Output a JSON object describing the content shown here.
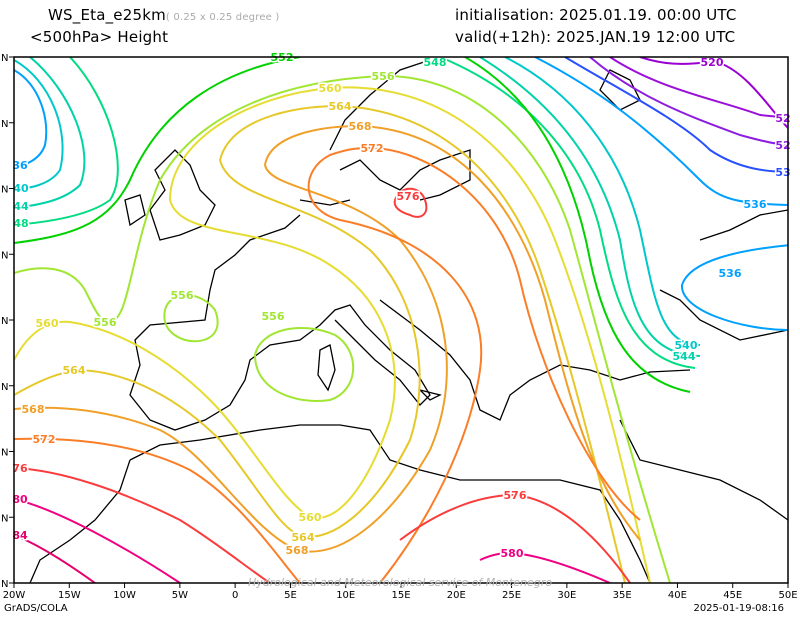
{
  "header": {
    "model": "WS_Eta_e25km",
    "resolution": "( 0.25 x 0.25 degree )",
    "field": "<500hPa> Height",
    "init_label": "initialisation: 2025.01.19.  00:00 UTC",
    "valid_label": "valid(+12h): 2025.JAN.19 12:00 UTC"
  },
  "axes": {
    "lon_labels": [
      "20W",
      "15W",
      "10W",
      "5W",
      "0",
      "5E",
      "10E",
      "15E",
      "20E",
      "25E",
      "30E",
      "35E",
      "40E",
      "45E",
      "50E"
    ],
    "lat_suffix": "N"
  },
  "contours": [
    {
      "level": "520",
      "color": "#9b00d2"
    },
    {
      "level": "524",
      "color": "#9b10d8"
    },
    {
      "level": "528",
      "color": "#8c1ee0"
    },
    {
      "level": "532",
      "color": "#2850ff"
    },
    {
      "level": "536",
      "color": "#00a0ff"
    },
    {
      "level": "540",
      "color": "#00c8c8"
    },
    {
      "level": "544",
      "color": "#00d2aa"
    },
    {
      "level": "548",
      "color": "#00dc82"
    },
    {
      "level": "552",
      "color": "#00d200"
    },
    {
      "level": "556",
      "color": "#a0e632"
    },
    {
      "level": "560",
      "color": "#e6dc32"
    },
    {
      "level": "564",
      "color": "#e6c828"
    },
    {
      "level": "568",
      "color": "#f0a028"
    },
    {
      "level": "572",
      "color": "#fa7d28"
    },
    {
      "level": "576",
      "color": "#fa3c3c"
    },
    {
      "level": "580",
      "color": "#f00082"
    },
    {
      "level": "584",
      "color": "#e6006e"
    }
  ],
  "labels": {
    "l520": "520",
    "l524": "52",
    "l528": "52",
    "l532": "53",
    "l536e": "536",
    "l536b": "536",
    "l540": "540",
    "l544": "544",
    "l548": "548",
    "l552": "552",
    "l556a": "556",
    "l556b": "556",
    "l556c": "556",
    "l556d": "556",
    "l560a": "560",
    "l560b": "560",
    "l560c": "560",
    "l564a": "564",
    "l564b": "564",
    "l564c": "564",
    "l568a": "568",
    "l568b": "568",
    "l568c": "568",
    "l572a": "572",
    "l572b": "572",
    "l576a": "576",
    "l576b": "576",
    "l576c": "76",
    "l580a": "580",
    "l580b": "80",
    "l584": "84",
    "w36": "36",
    "w40": "40",
    "w44": "44",
    "w48": "48"
  },
  "footer": {
    "watermark": "Hydrological and Meteorological service of Montenegro",
    "software": "GrADS/COLA",
    "timestamp": "2025-01-19-08:16"
  }
}
